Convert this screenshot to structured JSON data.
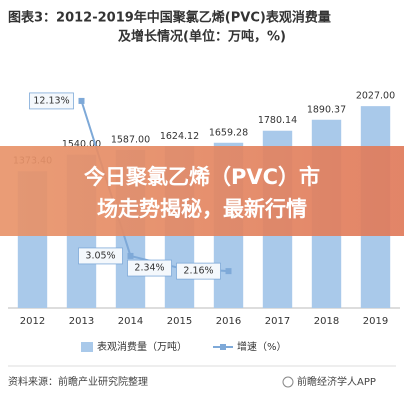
{
  "chart_data": {
    "type": "bar-line",
    "title": [
      "图表3：2012-2019年中国聚氯乙烯(PVC)表观消费量",
      "及增长情况(单位：万吨，%)"
    ],
    "categories": [
      "2012",
      "2013",
      "2014",
      "2015",
      "2016",
      "2017",
      "2018",
      "2019"
    ],
    "series": [
      {
        "name": "表观消费量（万吨）",
        "type": "bar",
        "color": "#a9c9ea",
        "values": [
          1373.4,
          1540,
          1587,
          1624.12,
          1659.28,
          1780.14,
          1890.37,
          2027
        ],
        "value_labels": [
          "1373.40",
          "1540.00",
          "1587.00",
          "1624.12",
          "1659.28",
          "1780.14",
          "1890.37",
          "2027.00"
        ]
      },
      {
        "name": "增速（%）",
        "type": "line",
        "axis": "y2",
        "color": "#7ea9d8",
        "values": [
          null,
          12.13,
          3.05,
          2.34,
          2.16,
          null,
          null,
          null
        ],
        "value_labels": [
          null,
          "12.13%",
          "3.05%",
          "2.34%",
          "2.16%",
          null,
          null,
          null
        ]
      }
    ],
    "ylim": [
      0,
      2400
    ],
    "y2lim": [
      0,
      14
    ]
  },
  "banner": [
    "今日聚氯乙烯（PVC）市",
    "场走势揭秘，最新行情"
  ],
  "footer": {
    "source": "资料来源：前瞻产业研究院整理",
    "brand": "前瞻经济学人APP"
  }
}
